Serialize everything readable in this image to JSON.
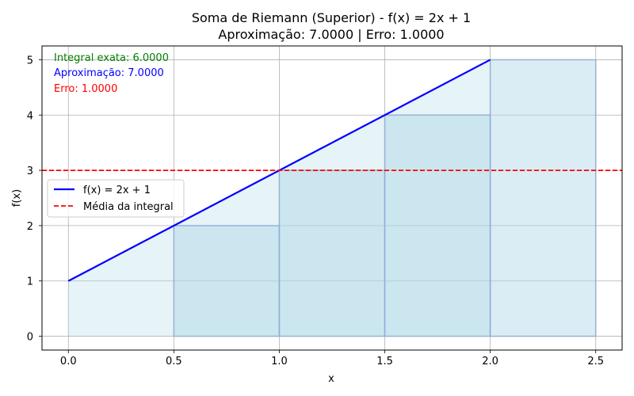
{
  "chart_data": {
    "type": "bar",
    "title": "Soma de Riemann (Superior) - f(x) = 2x + 1",
    "subtitle": "Aproximação: 7.0000 | Erro: 1.0000",
    "xlabel": "x",
    "ylabel": "f(x)",
    "xlim": [
      -0.125,
      2.625
    ],
    "ylim": [
      -0.25,
      5.25
    ],
    "xticks": [
      "0.0",
      "0.5",
      "1.0",
      "1.5",
      "2.0",
      "2.5"
    ],
    "yticks": [
      "0",
      "1",
      "2",
      "3",
      "4",
      "5"
    ],
    "grid": true,
    "curve": {
      "name": "f(x) = 2x + 1",
      "color": "#0000ff",
      "x": [
        0,
        2
      ],
      "y": [
        1,
        5
      ]
    },
    "area_under_curve": {
      "color": "#add8e6",
      "x": [
        0,
        2
      ],
      "y": [
        1,
        5
      ]
    },
    "rectangles": [
      {
        "x0": 0.5,
        "x1": 1.0,
        "height": 2
      },
      {
        "x0": 1.0,
        "x1": 1.5,
        "height": 3
      },
      {
        "x0": 1.5,
        "x1": 2.0,
        "height": 4
      },
      {
        "x0": 2.0,
        "x1": 2.5,
        "height": 5
      }
    ],
    "mean_line": {
      "name": "Média da integral",
      "color": "#ff0000",
      "y": 3
    },
    "annotations": [
      {
        "text": "Integral exata: 6.0000",
        "color": "#008000"
      },
      {
        "text": "Aproximação: 7.0000",
        "color": "#0000ff"
      },
      {
        "text": "Erro: 1.0000",
        "color": "#ff0000"
      }
    ],
    "legend": {
      "placement": "center-left",
      "entries": [
        "f(x) = 2x + 1",
        "Média da integral"
      ]
    }
  }
}
